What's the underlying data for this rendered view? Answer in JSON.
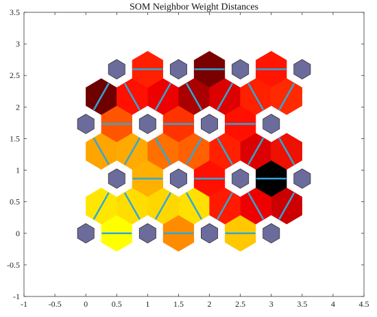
{
  "chart_data": {
    "type": "heatmap",
    "title": "SOM Neighbor Weight Distances",
    "xlabel": "",
    "ylabel": "",
    "xlim": [
      -1,
      4.5
    ],
    "ylim": [
      -1,
      3.5
    ],
    "xticks": [
      -1,
      -0.5,
      0,
      0.5,
      1,
      1.5,
      2,
      2.5,
      3,
      3.5,
      4,
      4.5
    ],
    "yticks": [
      -1,
      -0.5,
      0,
      0.5,
      1,
      1.5,
      2,
      2.5,
      3,
      3.5
    ],
    "xtick_labels": [
      "-1",
      "-0.5",
      "0",
      "0.5",
      "1",
      "1.5",
      "2",
      "2.5",
      "3",
      "3.5",
      "4",
      "4.5"
    ],
    "ytick_labels": [
      "-1",
      "-0.5",
      "0",
      "0.5",
      "1",
      "1.5",
      "2",
      "2.5",
      "3",
      "3.5"
    ],
    "grid": false,
    "neuron_color": "#6b6b9c",
    "line_color": "#2fa8d8",
    "neurons": [
      {
        "x": 0,
        "y": 0
      },
      {
        "x": 1,
        "y": 0
      },
      {
        "x": 2,
        "y": 0
      },
      {
        "x": 3,
        "y": 0
      },
      {
        "x": 0.5,
        "y": 0.866
      },
      {
        "x": 1.5,
        "y": 0.866
      },
      {
        "x": 2.5,
        "y": 0.866
      },
      {
        "x": 3.5,
        "y": 0.866
      },
      {
        "x": 0,
        "y": 1.732
      },
      {
        "x": 1,
        "y": 1.732
      },
      {
        "x": 2,
        "y": 1.732
      },
      {
        "x": 3,
        "y": 1.732
      },
      {
        "x": 0.5,
        "y": 2.598
      },
      {
        "x": 1.5,
        "y": 2.598
      },
      {
        "x": 2.5,
        "y": 2.598
      },
      {
        "x": 3.5,
        "y": 2.598
      }
    ],
    "distances": [
      {
        "x": 0.5,
        "y": 0,
        "color": "#ffff00"
      },
      {
        "x": 1.5,
        "y": 0,
        "color": "#ff8c00"
      },
      {
        "x": 2.5,
        "y": 0,
        "color": "#ffc800"
      },
      {
        "x": 0.25,
        "y": 0.433,
        "color": "#ffe600"
      },
      {
        "x": 0.75,
        "y": 0.433,
        "color": "#ffdd00"
      },
      {
        "x": 1.25,
        "y": 0.433,
        "color": "#ffd700"
      },
      {
        "x": 1.75,
        "y": 0.433,
        "color": "#ffe000"
      },
      {
        "x": 2.25,
        "y": 0.433,
        "color": "#ff1a00"
      },
      {
        "x": 2.75,
        "y": 0.433,
        "color": "#ee0000"
      },
      {
        "x": 3.25,
        "y": 0.433,
        "color": "#cc0000"
      },
      {
        "x": 1,
        "y": 0.866,
        "color": "#ffb000"
      },
      {
        "x": 2,
        "y": 0.866,
        "color": "#ff1000"
      },
      {
        "x": 3,
        "y": 0.866,
        "color": "#000000"
      },
      {
        "x": 0.25,
        "y": 1.299,
        "color": "#ffa500"
      },
      {
        "x": 0.75,
        "y": 1.299,
        "color": "#ffaa00"
      },
      {
        "x": 1.25,
        "y": 1.299,
        "color": "#ff7000"
      },
      {
        "x": 1.75,
        "y": 1.299,
        "color": "#ff6000"
      },
      {
        "x": 2.25,
        "y": 1.299,
        "color": "#ff2000"
      },
      {
        "x": 2.75,
        "y": 1.299,
        "color": "#dd0000"
      },
      {
        "x": 3.25,
        "y": 1.299,
        "color": "#ee1000"
      },
      {
        "x": 0.5,
        "y": 1.732,
        "color": "#ff5500"
      },
      {
        "x": 1.5,
        "y": 1.732,
        "color": "#ff3300"
      },
      {
        "x": 2.5,
        "y": 1.732,
        "color": "#ff1000"
      },
      {
        "x": 0.25,
        "y": 2.165,
        "color": "#6e0000"
      },
      {
        "x": 0.75,
        "y": 2.165,
        "color": "#ff1000"
      },
      {
        "x": 1.25,
        "y": 2.165,
        "color": "#ee0000"
      },
      {
        "x": 1.75,
        "y": 2.165,
        "color": "#aa0000"
      },
      {
        "x": 2.25,
        "y": 2.165,
        "color": "#dd0000"
      },
      {
        "x": 2.75,
        "y": 2.165,
        "color": "#ff2000"
      },
      {
        "x": 3.25,
        "y": 2.165,
        "color": "#ff2a00"
      },
      {
        "x": 1,
        "y": 2.598,
        "color": "#ff2000"
      },
      {
        "x": 2,
        "y": 2.598,
        "color": "#7a0000"
      },
      {
        "x": 3,
        "y": 2.598,
        "color": "#ff1500"
      }
    ]
  }
}
